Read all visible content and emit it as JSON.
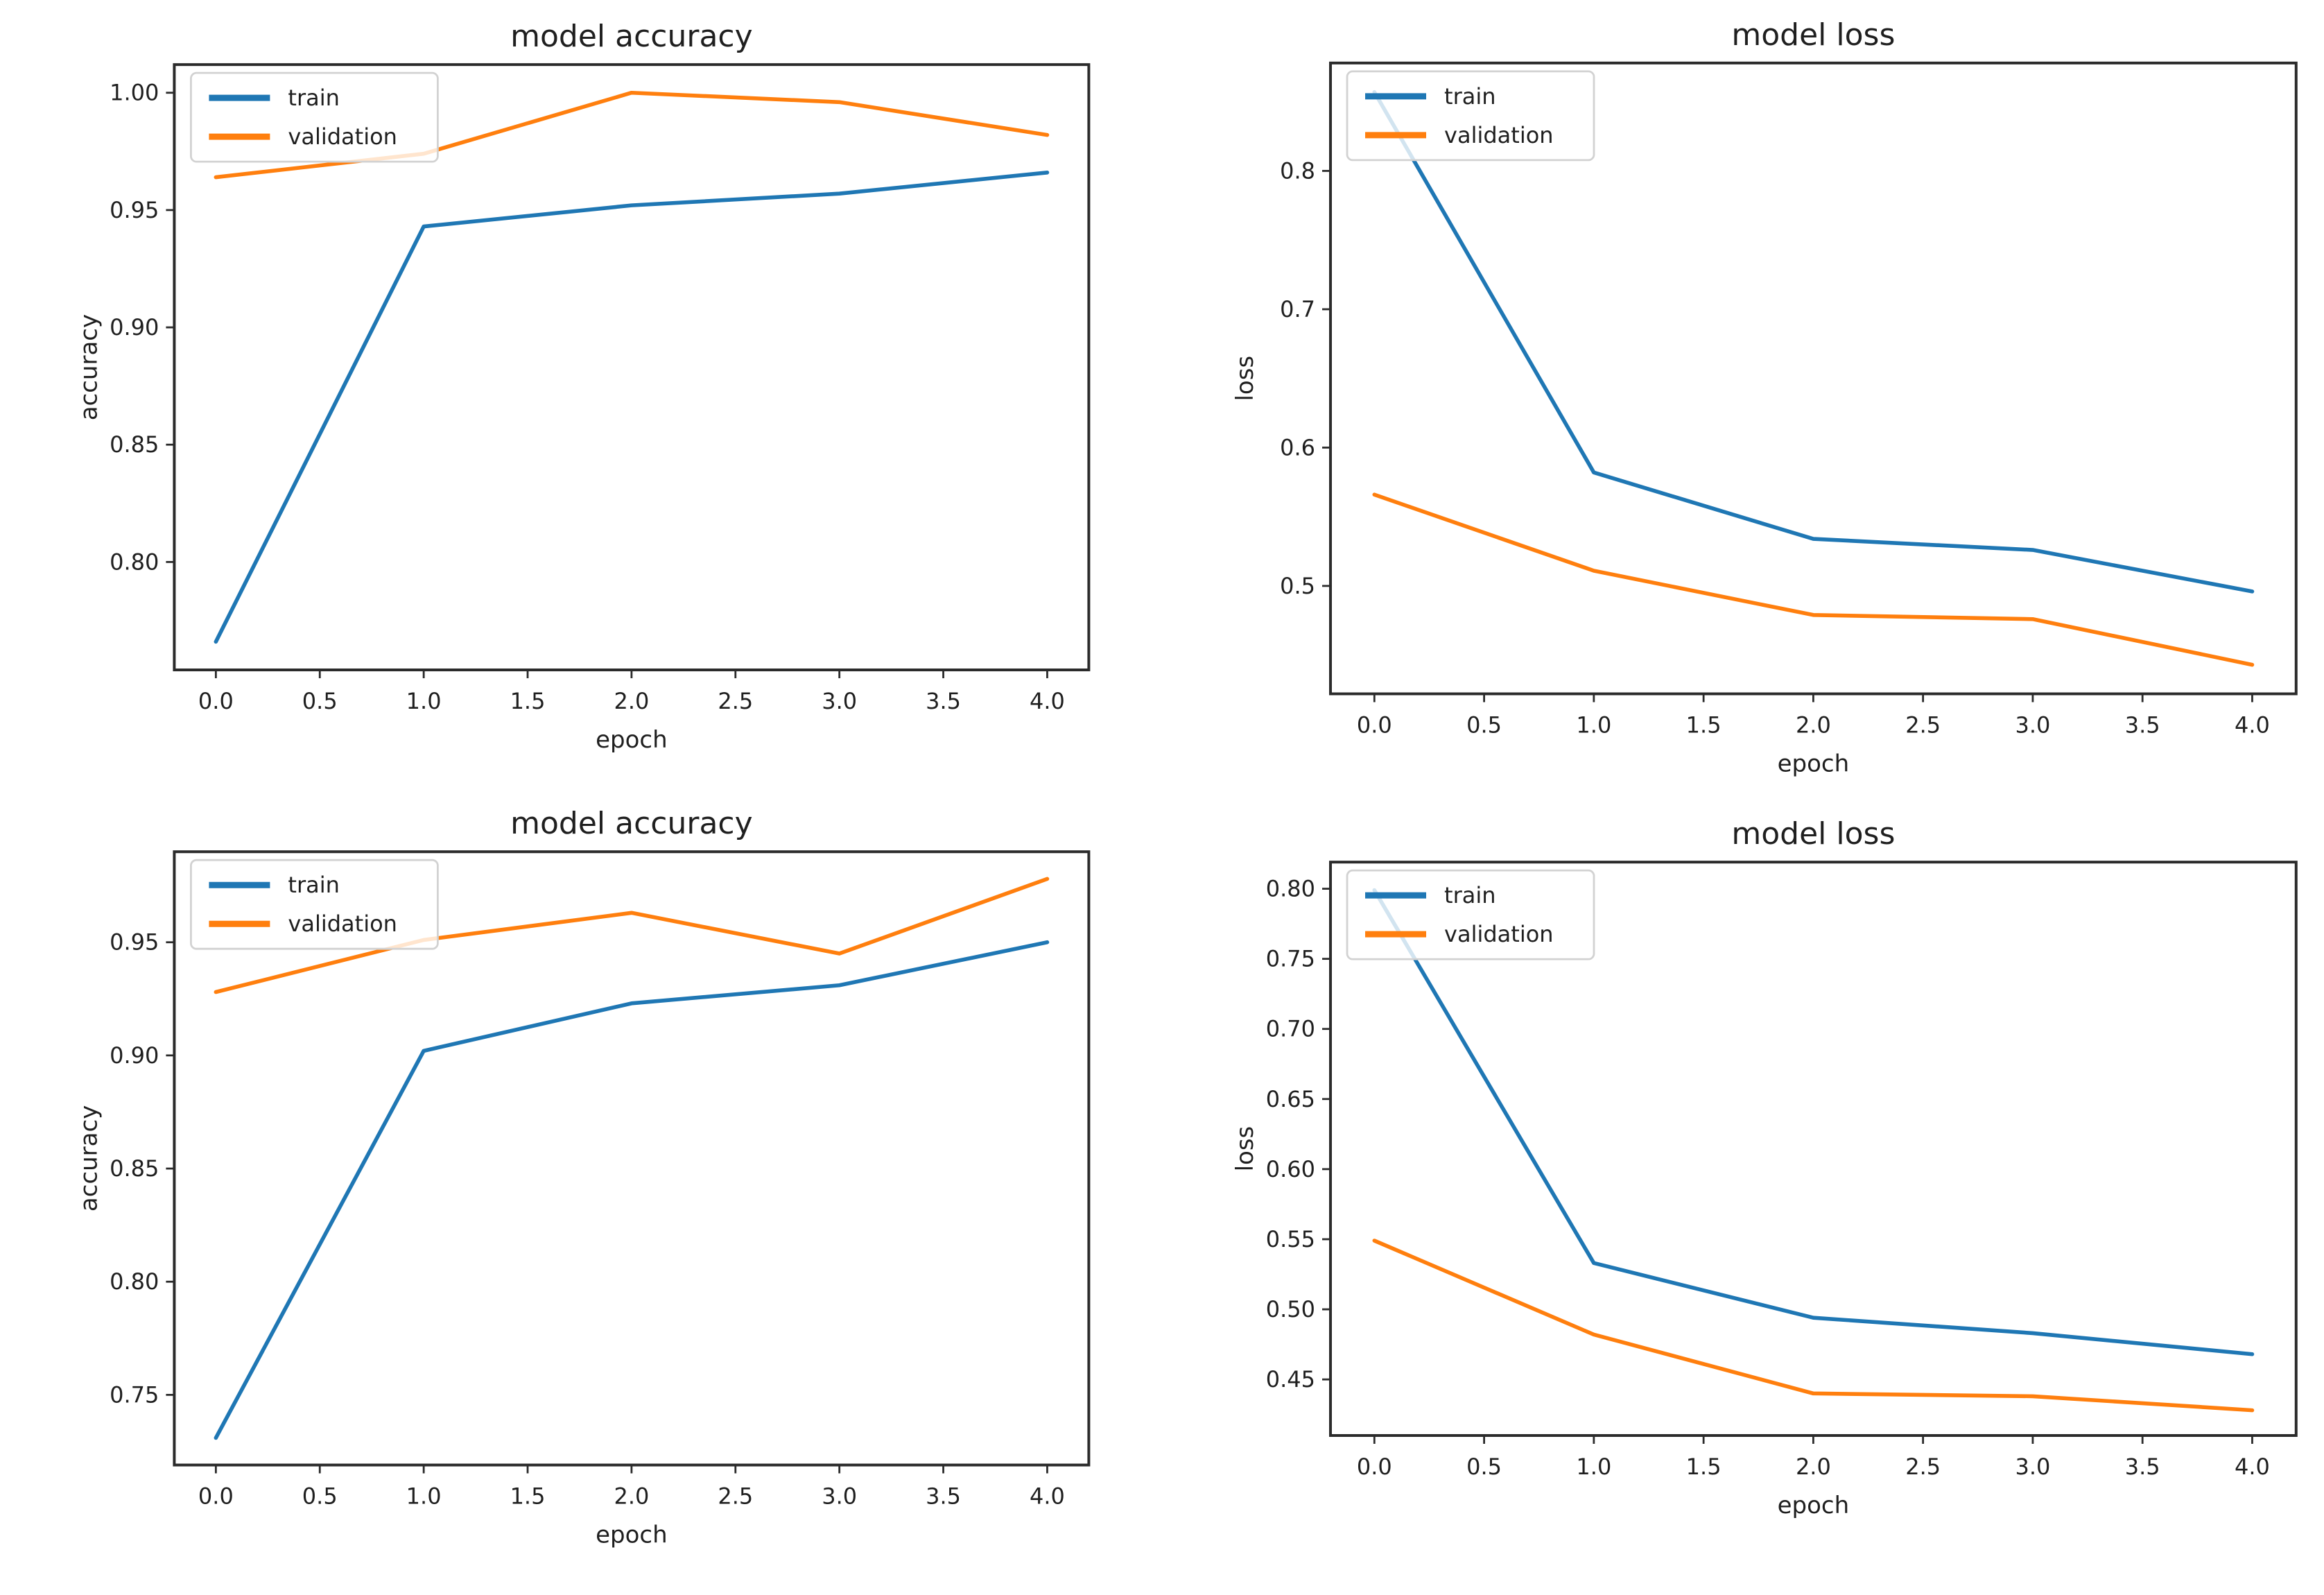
{
  "figure": {
    "kind": "matplotlib-training-curves",
    "rows": 2,
    "cols": 2,
    "background": "#ffffff"
  },
  "style": {
    "background": "#ffffff",
    "spine_color": "#2b2b2b",
    "tick_color": "#2b2b2b",
    "text_color": "#1f1f1f",
    "legend_border": "#d2d2d2",
    "legend_fill": "#ffffff",
    "train_color": "#1f77b4",
    "validation_color": "#ff7f0e"
  },
  "legend_labels": {
    "train": "train",
    "validation": "validation"
  },
  "chart_data": [
    {
      "id": "model1-accuracy",
      "type": "line",
      "title": "model accuracy",
      "xlabel": "epoch",
      "ylabel": "accuracy",
      "x": [
        0,
        1,
        2,
        3,
        4
      ],
      "series": [
        {
          "name": "train",
          "color": "#1f77b4",
          "values": [
            0.766,
            0.943,
            0.952,
            0.957,
            0.966
          ]
        },
        {
          "name": "validation",
          "color": "#ff7f0e",
          "values": [
            0.964,
            0.974,
            1.0,
            0.996,
            0.982
          ]
        }
      ],
      "xlim": [
        -0.2,
        4.2
      ],
      "ylim": [
        0.754,
        1.012
      ],
      "xticks": {
        "values": [
          0,
          0.5,
          1,
          1.5,
          2,
          2.5,
          3,
          3.5,
          4
        ],
        "labels": [
          "0.0",
          "0.5",
          "1.0",
          "1.5",
          "2.0",
          "2.5",
          "3.0",
          "3.5",
          "4.0"
        ]
      },
      "yticks": {
        "values": [
          0.8,
          0.85,
          0.9,
          0.95,
          1.0
        ],
        "labels": [
          "0.80",
          "0.85",
          "0.90",
          "0.95",
          "1.00"
        ]
      },
      "legend": {
        "position": "upper left",
        "entries": [
          "train",
          "validation"
        ]
      },
      "grid": false,
      "axes_rect": [
        0.15,
        0.081,
        0.937,
        0.84
      ]
    },
    {
      "id": "model1-loss",
      "type": "line",
      "title": "model loss",
      "xlabel": "epoch",
      "ylabel": "loss",
      "x": [
        0,
        1,
        2,
        3,
        4
      ],
      "series": [
        {
          "name": "train",
          "color": "#1f77b4",
          "values": [
            0.857,
            0.582,
            0.534,
            0.526,
            0.496
          ]
        },
        {
          "name": "validation",
          "color": "#ff7f0e",
          "values": [
            0.566,
            0.511,
            0.479,
            0.476,
            0.443
          ]
        }
      ],
      "xlim": [
        -0.2,
        4.2
      ],
      "ylim": [
        0.422,
        0.878
      ],
      "xticks": {
        "values": [
          0,
          0.5,
          1,
          1.5,
          2,
          2.5,
          3,
          3.5,
          4
        ],
        "labels": [
          "0.0",
          "0.5",
          "1.0",
          "1.5",
          "2.0",
          "2.5",
          "3.0",
          "3.5",
          "4.0"
        ]
      },
      "yticks": {
        "values": [
          0.5,
          0.6,
          0.7,
          0.8
        ],
        "labels": [
          "0.5",
          "0.6",
          "0.7",
          "0.8"
        ]
      },
      "legend": {
        "position": "upper left",
        "entries": [
          "train",
          "validation"
        ]
      },
      "grid": false,
      "axes_rect": [
        0.145,
        0.079,
        0.976,
        0.87
      ]
    },
    {
      "id": "model2-accuracy",
      "type": "line",
      "title": "model accuracy",
      "xlabel": "epoch",
      "ylabel": "accuracy",
      "x": [
        0,
        1,
        2,
        3,
        4
      ],
      "series": [
        {
          "name": "train",
          "color": "#1f77b4",
          "values": [
            0.731,
            0.902,
            0.923,
            0.931,
            0.95
          ]
        },
        {
          "name": "validation",
          "color": "#ff7f0e",
          "values": [
            0.928,
            0.951,
            0.963,
            0.945,
            0.978
          ]
        }
      ],
      "xlim": [
        -0.2,
        4.2
      ],
      "ylim": [
        0.719,
        0.99
      ],
      "xticks": {
        "values": [
          0,
          0.5,
          1,
          1.5,
          2,
          2.5,
          3,
          3.5,
          4
        ],
        "labels": [
          "0.0",
          "0.5",
          "1.0",
          "1.5",
          "2.0",
          "2.5",
          "3.0",
          "3.5",
          "4.0"
        ]
      },
      "yticks": {
        "values": [
          0.75,
          0.8,
          0.85,
          0.9,
          0.95
        ],
        "labels": [
          "0.75",
          "0.80",
          "0.85",
          "0.90",
          "0.95"
        ]
      },
      "legend": {
        "position": "upper left",
        "entries": [
          "train",
          "validation"
        ]
      },
      "grid": false,
      "axes_rect": [
        0.15,
        0.068,
        0.937,
        0.837
      ]
    },
    {
      "id": "model2-loss",
      "type": "line",
      "title": "model loss",
      "xlabel": "epoch",
      "ylabel": "loss",
      "x": [
        0,
        1,
        2,
        3,
        4
      ],
      "series": [
        {
          "name": "train",
          "color": "#1f77b4",
          "values": [
            0.799,
            0.533,
            0.494,
            0.483,
            0.468
          ]
        },
        {
          "name": "validation",
          "color": "#ff7f0e",
          "values": [
            0.549,
            0.482,
            0.44,
            0.438,
            0.428
          ]
        }
      ],
      "xlim": [
        -0.2,
        4.2
      ],
      "ylim": [
        0.41,
        0.819
      ],
      "xticks": {
        "values": [
          0,
          0.5,
          1,
          1.5,
          2,
          2.5,
          3,
          3.5,
          4
        ],
        "labels": [
          "0.0",
          "0.5",
          "1.0",
          "1.5",
          "2.0",
          "2.5",
          "3.0",
          "3.5",
          "4.0"
        ]
      },
      "yticks": {
        "values": [
          0.45,
          0.5,
          0.55,
          0.6,
          0.65,
          0.7,
          0.75,
          0.8
        ],
        "labels": [
          "0.45",
          "0.50",
          "0.55",
          "0.60",
          "0.65",
          "0.70",
          "0.75",
          "0.80"
        ]
      },
      "legend": {
        "position": "upper left",
        "entries": [
          "train",
          "validation"
        ]
      },
      "grid": false,
      "axes_rect": [
        0.145,
        0.081,
        0.976,
        0.8
      ]
    }
  ]
}
